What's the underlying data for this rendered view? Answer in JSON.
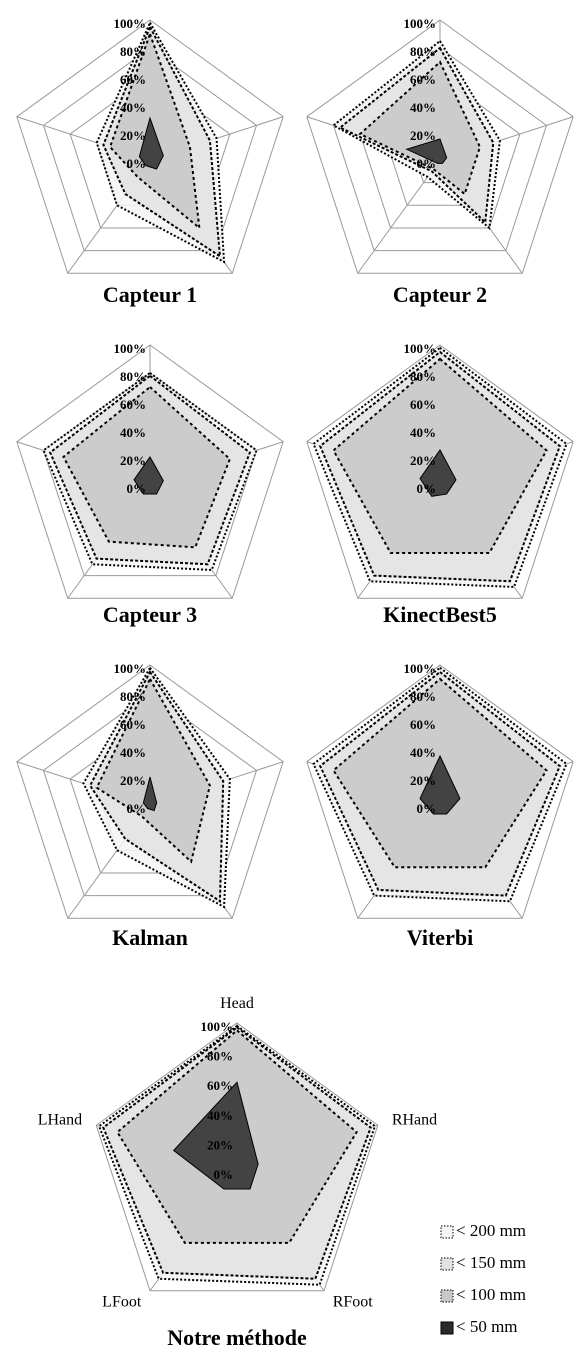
{
  "chart_data": [
    {
      "type": "radar",
      "title": "Capteur 1",
      "categories": [
        null,
        null,
        null,
        null,
        null
      ],
      "rlim": [
        0,
        100
      ],
      "rticks": [
        {
          "value": 0,
          "label": "0%"
        },
        {
          "value": 20,
          "label": "20%"
        },
        {
          "value": 40,
          "label": "40%"
        },
        {
          "value": 60,
          "label": "60%"
        },
        {
          "value": 80,
          "label": "80%"
        },
        {
          "value": 100,
          "label": "100%"
        }
      ],
      "series": [
        {
          "color": "#f4f4f4",
          "values": [
            98,
            50,
            90,
            40,
            40
          ]
        },
        {
          "color": "#e2e2e2",
          "values": [
            95,
            45,
            85,
            30,
            35
          ]
        },
        {
          "color": "#c8c8c8",
          "values": [
            90,
            30,
            60,
            15,
            30
          ]
        },
        {
          "color": "#2a2a2a",
          "values": [
            30,
            10,
            8,
            5,
            8
          ]
        }
      ]
    },
    {
      "type": "radar",
      "title": "Capteur 2",
      "categories": [
        null,
        null,
        null,
        null,
        null
      ],
      "rlim": [
        0,
        100
      ],
      "rticks": [
        {
          "value": 0,
          "label": "0%"
        },
        {
          "value": 20,
          "label": "20%"
        },
        {
          "value": 40,
          "label": "40%"
        },
        {
          "value": 60,
          "label": "60%"
        },
        {
          "value": 80,
          "label": "80%"
        },
        {
          "value": 100,
          "label": "100%"
        }
      ],
      "series": [
        {
          "color": "#f4f4f4",
          "values": [
            85,
            45,
            60,
            15,
            80
          ]
        },
        {
          "color": "#e2e2e2",
          "values": [
            80,
            40,
            55,
            10,
            75
          ]
        },
        {
          "color": "#c8c8c8",
          "values": [
            70,
            30,
            30,
            8,
            60
          ]
        },
        {
          "color": "#2a2a2a",
          "values": [
            15,
            5,
            3,
            3,
            25
          ]
        }
      ]
    },
    {
      "type": "radar",
      "title": "Capteur 3",
      "categories": [
        null,
        null,
        null,
        null,
        null
      ],
      "rlim": [
        0,
        100
      ],
      "rticks": [
        {
          "value": 0,
          "label": "0%"
        },
        {
          "value": 20,
          "label": "20%"
        },
        {
          "value": 40,
          "label": "40%"
        },
        {
          "value": 60,
          "label": "60%"
        },
        {
          "value": 80,
          "label": "80%"
        },
        {
          "value": 100,
          "label": "100%"
        }
      ],
      "series": [
        {
          "color": "#f4f4f4",
          "values": [
            80,
            80,
            75,
            70,
            80
          ]
        },
        {
          "color": "#e2e2e2",
          "values": [
            78,
            75,
            70,
            65,
            75
          ]
        },
        {
          "color": "#c8c8c8",
          "values": [
            70,
            60,
            55,
            50,
            65
          ]
        },
        {
          "color": "#2a2a2a",
          "values": [
            20,
            10,
            8,
            8,
            12
          ]
        }
      ]
    },
    {
      "type": "radar",
      "title": "KinectBest5",
      "categories": [
        null,
        null,
        null,
        null,
        null
      ],
      "rlim": [
        0,
        100
      ],
      "rticks": [
        {
          "value": 0,
          "label": "0%"
        },
        {
          "value": 20,
          "label": "20%"
        },
        {
          "value": 40,
          "label": "40%"
        },
        {
          "value": 60,
          "label": "60%"
        },
        {
          "value": 80,
          "label": "80%"
        },
        {
          "value": 100,
          "label": "100%"
        }
      ],
      "series": [
        {
          "color": "#f4f4f4",
          "values": [
            98,
            95,
            90,
            85,
            95
          ]
        },
        {
          "color": "#e2e2e2",
          "values": [
            95,
            90,
            85,
            80,
            90
          ]
        },
        {
          "color": "#c8c8c8",
          "values": [
            90,
            80,
            60,
            60,
            80
          ]
        },
        {
          "color": "#2a2a2a",
          "values": [
            25,
            12,
            8,
            10,
            15
          ]
        }
      ]
    },
    {
      "type": "radar",
      "title": "Kalman",
      "categories": [
        null,
        null,
        null,
        null,
        null
      ],
      "rlim": [
        0,
        100
      ],
      "rticks": [
        {
          "value": 0,
          "label": "0%"
        },
        {
          "value": 20,
          "label": "20%"
        },
        {
          "value": 40,
          "label": "40%"
        },
        {
          "value": 60,
          "label": "60%"
        },
        {
          "value": 80,
          "label": "80%"
        },
        {
          "value": 100,
          "label": "100%"
        }
      ],
      "series": [
        {
          "color": "#f4f4f4",
          "values": [
            98,
            60,
            90,
            40,
            50
          ]
        },
        {
          "color": "#e2e2e2",
          "values": [
            95,
            55,
            85,
            30,
            45
          ]
        },
        {
          "color": "#c8c8c8",
          "values": [
            90,
            45,
            50,
            10,
            40
          ]
        },
        {
          "color": "#2a2a2a",
          "values": [
            20,
            5,
            5,
            3,
            5
          ]
        }
      ]
    },
    {
      "type": "radar",
      "title": "Viterbi",
      "categories": [
        null,
        null,
        null,
        null,
        null
      ],
      "rlim": [
        0,
        100
      ],
      "rticks": [
        {
          "value": 0,
          "label": "0%"
        },
        {
          "value": 20,
          "label": "20%"
        },
        {
          "value": 40,
          "label": "40%"
        },
        {
          "value": 60,
          "label": "60%"
        },
        {
          "value": 80,
          "label": "80%"
        },
        {
          "value": 100,
          "label": "100%"
        }
      ],
      "series": [
        {
          "color": "#f4f4f4",
          "values": [
            98,
            95,
            85,
            80,
            95
          ]
        },
        {
          "color": "#e2e2e2",
          "values": [
            95,
            90,
            80,
            75,
            90
          ]
        },
        {
          "color": "#c8c8c8",
          "values": [
            90,
            80,
            55,
            55,
            80
          ]
        },
        {
          "color": "#2a2a2a",
          "values": [
            35,
            15,
            8,
            8,
            15
          ]
        }
      ]
    },
    {
      "type": "radar",
      "title": "Notre méthode",
      "categories": [
        "Head",
        "RHand",
        "RFoot",
        "LFoot",
        "LHand"
      ],
      "rlim": [
        0,
        100
      ],
      "rticks": [
        {
          "value": 0,
          "label": "0%"
        },
        {
          "value": 20,
          "label": "20%"
        },
        {
          "value": 40,
          "label": "40%"
        },
        {
          "value": 60,
          "label": "60%"
        },
        {
          "value": 80,
          "label": "80%"
        },
        {
          "value": 100,
          "label": "100%"
        }
      ],
      "legend": "right",
      "series": [
        {
          "name": "< 200 mm",
          "color": "#f4f4f4",
          "values": [
            98,
            98,
            95,
            90,
            98
          ]
        },
        {
          "name": "< 150 mm",
          "color": "#e2e2e2",
          "values": [
            97,
            95,
            90,
            85,
            95
          ]
        },
        {
          "name": "< 100 mm",
          "color": "#c8c8c8",
          "values": [
            95,
            85,
            60,
            60,
            85
          ]
        },
        {
          "name": "< 50 mm",
          "color": "#2a2a2a",
          "values": [
            60,
            15,
            15,
            15,
            45
          ]
        }
      ]
    }
  ]
}
